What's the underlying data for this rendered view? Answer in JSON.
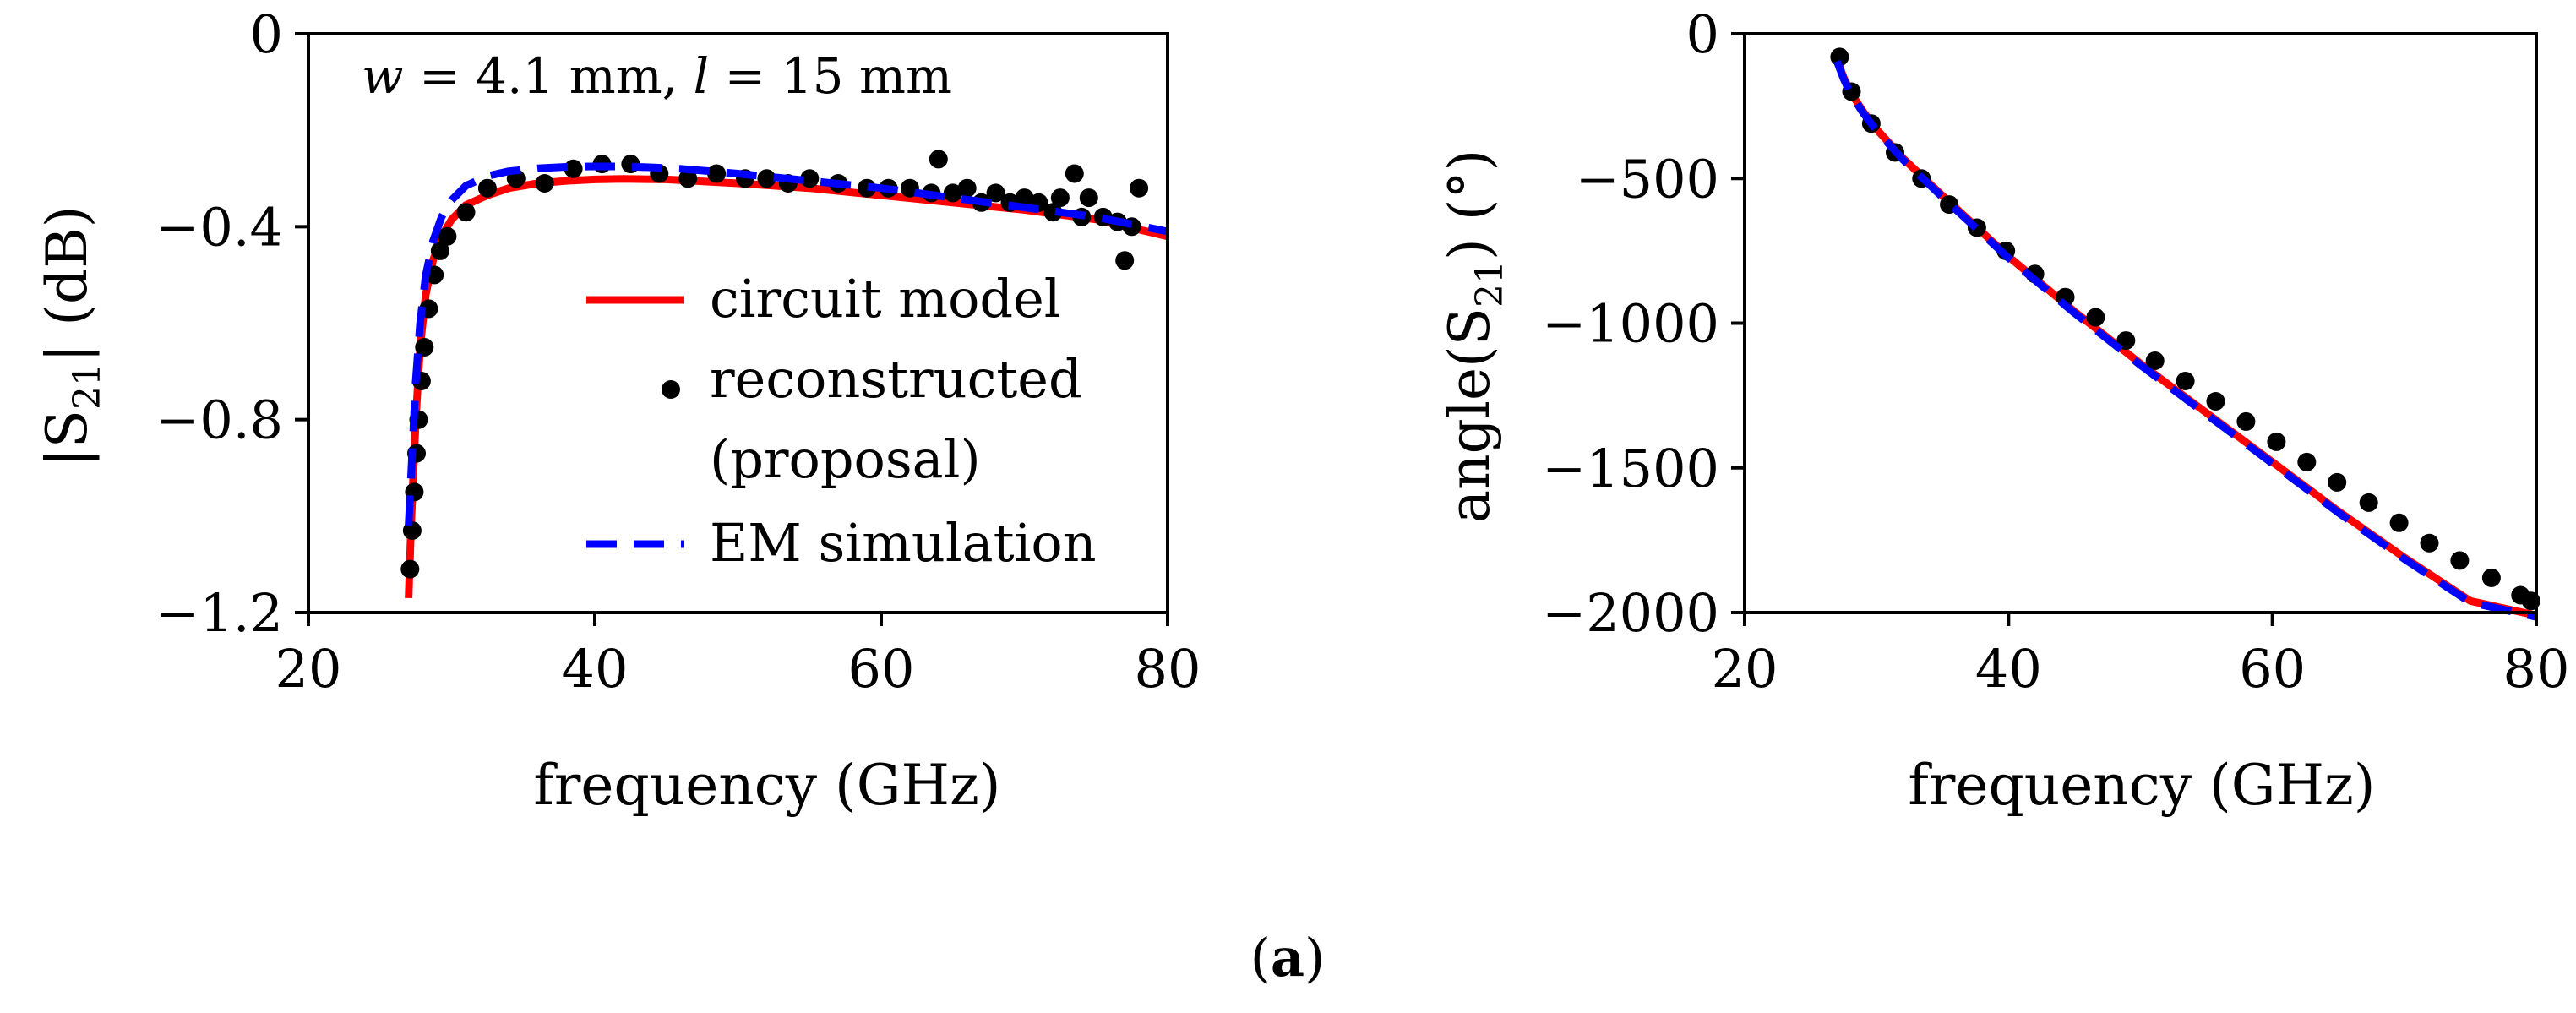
{
  "chart_data": [
    {
      "type": "line",
      "panel": "left",
      "title": "",
      "annotation": {
        "w_sym": "w",
        "w_rest": " = 4.1 mm, ",
        "l_sym": "l",
        "l_rest": " = 15 mm"
      },
      "xlabel": "frequency (GHz)",
      "ylabel": {
        "pre": "|S",
        "sub": "21",
        "post": "| (dB)"
      },
      "xlim": [
        20,
        80
      ],
      "ylim": [
        -1.2,
        0
      ],
      "xticks": [
        20,
        40,
        60,
        80
      ],
      "yticks": [
        0,
        -0.4,
        -0.8,
        -1.2
      ],
      "xtick_labels": [
        "20",
        "40",
        "60",
        "80"
      ],
      "ytick_labels": [
        "0",
        "−0.4",
        "−0.8",
        "−1.2"
      ],
      "legend": {
        "position": "center-right",
        "entries": [
          "circuit model",
          "reconstructed",
          "(proposal)",
          "EM simulation"
        ]
      },
      "series": [
        {
          "name": "circuit model",
          "style": "solid",
          "color": "#ff0000",
          "x": [
            27.0,
            27.2,
            27.5,
            27.8,
            28.2,
            28.7,
            29.3,
            30.0,
            31.0,
            32.5,
            34.0,
            36.0,
            38.0,
            40.0,
            42.0,
            45.0,
            50.0,
            55.0,
            60.0,
            65.0,
            70.0,
            75.0,
            80.0
          ],
          "y": [
            -1.17,
            -1.0,
            -0.8,
            -0.65,
            -0.54,
            -0.47,
            -0.42,
            -0.385,
            -0.355,
            -0.335,
            -0.32,
            -0.31,
            -0.305,
            -0.302,
            -0.301,
            -0.302,
            -0.31,
            -0.32,
            -0.335,
            -0.35,
            -0.365,
            -0.385,
            -0.42
          ]
        },
        {
          "name": "reconstructed (proposal)",
          "style": "markers",
          "color": "#000000",
          "x": [
            27.1,
            27.25,
            27.4,
            27.55,
            27.7,
            27.9,
            28.1,
            28.4,
            28.8,
            29.2,
            29.7,
            31.0,
            32.5,
            34.5,
            36.5,
            38.5,
            40.5,
            42.5,
            44.5,
            46.5,
            48.5,
            50.5,
            52.0,
            53.5,
            55.0,
            57.0,
            59.0,
            60.5,
            62.0,
            63.5,
            64.0,
            65.0,
            66.0,
            67.0,
            68.0,
            69.0,
            70.0,
            71.0,
            72.0,
            72.5,
            73.5,
            74.0,
            74.5,
            75.5,
            76.5,
            77.0,
            77.5,
            78.0
          ],
          "y": [
            -1.11,
            -1.03,
            -0.95,
            -0.87,
            -0.8,
            -0.72,
            -0.65,
            -0.57,
            -0.5,
            -0.45,
            -0.42,
            -0.37,
            -0.32,
            -0.3,
            -0.31,
            -0.28,
            -0.27,
            -0.27,
            -0.29,
            -0.3,
            -0.29,
            -0.3,
            -0.3,
            -0.31,
            -0.3,
            -0.31,
            -0.32,
            -0.32,
            -0.32,
            -0.33,
            -0.26,
            -0.33,
            -0.32,
            -0.35,
            -0.33,
            -0.35,
            -0.34,
            -0.35,
            -0.37,
            -0.34,
            -0.29,
            -0.38,
            -0.34,
            -0.38,
            -0.39,
            -0.47,
            -0.4,
            -0.32
          ]
        },
        {
          "name": "EM simulation",
          "style": "dashed",
          "color": "#0000ff",
          "x": [
            27.0,
            27.2,
            27.5,
            27.8,
            28.2,
            28.7,
            29.3,
            30.0,
            31.0,
            32.5,
            34.0,
            36.0,
            38.0,
            40.0,
            42.0,
            44.0,
            46.0,
            50.0,
            55.0,
            60.0,
            65.0,
            70.0,
            75.0,
            80.0
          ],
          "y": [
            -1.02,
            -0.9,
            -0.72,
            -0.6,
            -0.5,
            -0.43,
            -0.38,
            -0.345,
            -0.315,
            -0.295,
            -0.285,
            -0.279,
            -0.276,
            -0.275,
            -0.275,
            -0.277,
            -0.28,
            -0.29,
            -0.305,
            -0.32,
            -0.34,
            -0.36,
            -0.38,
            -0.41
          ]
        }
      ]
    },
    {
      "type": "line",
      "panel": "right",
      "title": "",
      "xlabel": "frequency (GHz)",
      "ylabel": {
        "pre": "angle(S",
        "sub": "21",
        "post": ") (°)"
      },
      "xlim": [
        20,
        80
      ],
      "ylim": [
        -2000,
        0
      ],
      "xticks": [
        20,
        40,
        60,
        80
      ],
      "yticks": [
        0,
        -500,
        -1000,
        -1500,
        -2000
      ],
      "xtick_labels": [
        "20",
        "40",
        "60",
        "80"
      ],
      "ytick_labels": [
        "0",
        "−500",
        "−1000",
        "−1500",
        "−2000"
      ],
      "series": [
        {
          "name": "circuit model",
          "style": "solid",
          "color": "#ff0000",
          "x": [
            27.0,
            27.5,
            28.0,
            29.0,
            30.0,
            32.0,
            35.0,
            40.0,
            45.0,
            50.0,
            55.0,
            60.0,
            65.0,
            70.0,
            75.0,
            80.0
          ],
          "y": [
            -90,
            -150,
            -200,
            -270,
            -330,
            -430,
            -560,
            -770,
            -960,
            -1140,
            -1310,
            -1480,
            -1650,
            -1810,
            -1960,
            -2010
          ]
        },
        {
          "name": "reconstructed (proposal)",
          "style": "markers",
          "color": "#000000",
          "x": [
            27.2,
            28.1,
            29.6,
            31.4,
            33.4,
            35.5,
            37.6,
            39.8,
            42.0,
            44.3,
            46.6,
            48.9,
            51.1,
            53.4,
            55.7,
            58.0,
            60.3,
            62.6,
            64.9,
            67.3,
            69.6,
            71.9,
            74.2,
            76.6,
            78.8,
            79.6
          ],
          "y": [
            -80,
            -200,
            -310,
            -410,
            -500,
            -590,
            -670,
            -750,
            -830,
            -910,
            -980,
            -1060,
            -1130,
            -1200,
            -1270,
            -1340,
            -1410,
            -1480,
            -1550,
            -1620,
            -1690,
            -1760,
            -1820,
            -1880,
            -1940,
            -1960
          ]
        },
        {
          "name": "EM simulation",
          "style": "dashed",
          "color": "#0000ff",
          "x": [
            27.0,
            27.5,
            28.0,
            29.0,
            30.0,
            32.0,
            35.0,
            40.0,
            45.0,
            50.0,
            55.0,
            60.0,
            65.0,
            70.0,
            75.0,
            80.0
          ],
          "y": [
            -95,
            -155,
            -205,
            -275,
            -335,
            -435,
            -565,
            -775,
            -965,
            -1145,
            -1315,
            -1485,
            -1655,
            -1815,
            -1965,
            -2015
          ]
        }
      ]
    }
  ],
  "caption": {
    "open": "(",
    "letter": "a",
    "close": ")"
  }
}
